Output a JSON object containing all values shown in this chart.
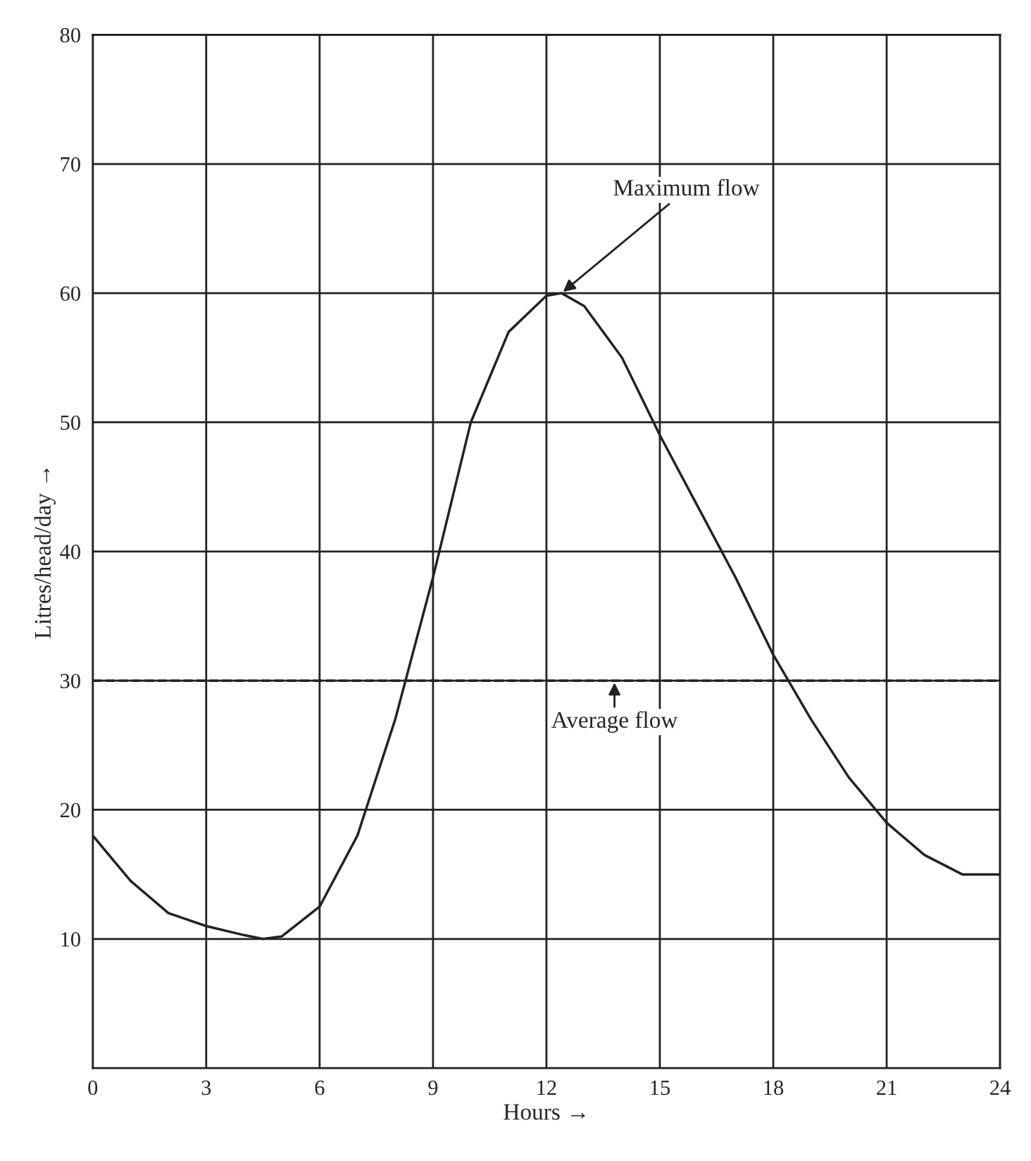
{
  "chart_data": {
    "type": "line",
    "xlabel": "Hours →",
    "ylabel": "Litres/head/day →",
    "xlim": [
      0,
      24
    ],
    "ylim": [
      0,
      80
    ],
    "xticks": [
      0,
      3,
      6,
      9,
      12,
      15,
      18,
      21,
      24
    ],
    "yticks": [
      10,
      20,
      30,
      40,
      50,
      60,
      70,
      80
    ],
    "grid": true,
    "marker": "none",
    "line_style": "solid",
    "series": [
      {
        "color": "#222222",
        "x": [
          0,
          1,
          2,
          3,
          4,
          4.5,
          5,
          6,
          7,
          8,
          9,
          10,
          11,
          12,
          12.4,
          13,
          14,
          15,
          16,
          17,
          18,
          19,
          20,
          21,
          22,
          23,
          24
        ],
        "values": [
          18,
          14.5,
          12,
          11,
          10.3,
          10,
          10.2,
          12.5,
          18,
          27,
          38,
          50,
          57,
          59.8,
          60,
          59,
          55,
          49,
          43.5,
          38,
          32,
          27,
          22.5,
          19,
          16.5,
          15,
          15
        ]
      }
    ],
    "ref_lines": [
      {
        "axis": "y",
        "value": 30,
        "line_style": "dashed",
        "color": "#222222"
      }
    ],
    "annotations": [
      {
        "text": "Maximum flow",
        "x": 12.4,
        "y": 60
      },
      {
        "text": "Average flow",
        "x": 13.8,
        "y": 30
      }
    ]
  }
}
